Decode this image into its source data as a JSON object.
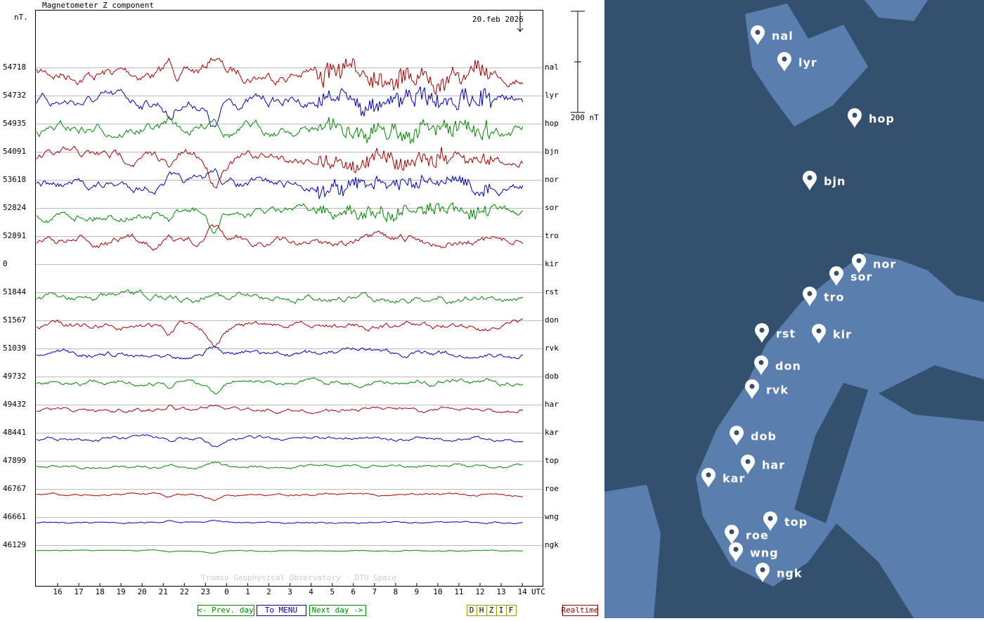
{
  "plot": {
    "title": "Magnetometer Z component",
    "unit": "nT.",
    "date": "20.feb 2026",
    "scale": "200 nT",
    "utc": "UTC",
    "credit": "Tromso Geophysical Observatory - DTU Space",
    "stations": [
      {
        "code": "nal",
        "baseline": 54718
      },
      {
        "code": "lyr",
        "baseline": 54732
      },
      {
        "code": "hop",
        "baseline": 54935
      },
      {
        "code": "bjn",
        "baseline": 54091
      },
      {
        "code": "nor",
        "baseline": 53618
      },
      {
        "code": "sor",
        "baseline": 52824
      },
      {
        "code": "tro",
        "baseline": 52891
      },
      {
        "code": "kir",
        "baseline": 0
      },
      {
        "code": "rst",
        "baseline": 51844
      },
      {
        "code": "don",
        "baseline": 51567
      },
      {
        "code": "rvk",
        "baseline": 51039
      },
      {
        "code": "dob",
        "baseline": 49732
      },
      {
        "code": "har",
        "baseline": 49432
      },
      {
        "code": "kar",
        "baseline": 48441
      },
      {
        "code": "top",
        "baseline": 47899
      },
      {
        "code": "roe",
        "baseline": 46767
      },
      {
        "code": "wng",
        "baseline": 46661
      },
      {
        "code": "ngk",
        "baseline": 46129
      }
    ],
    "hours": [
      16,
      17,
      18,
      19,
      20,
      21,
      22,
      23,
      0,
      1,
      2,
      3,
      4,
      5,
      6,
      7,
      8,
      9,
      10,
      11,
      12,
      13,
      14
    ]
  },
  "buttons": {
    "prev": "<- Prev. day",
    "menu": "To MENU",
    "next": "Next day ->",
    "realtime": "Realtime"
  },
  "components": [
    "D",
    "H",
    "Z",
    "I",
    "F"
  ],
  "map": {
    "stations": [
      "nal",
      "lyr",
      "hop",
      "bjn",
      "nor",
      "sor",
      "tro",
      "rst",
      "kir",
      "don",
      "rvk",
      "dob",
      "har",
      "kar",
      "top",
      "roe",
      "wng",
      "ngk"
    ]
  }
}
